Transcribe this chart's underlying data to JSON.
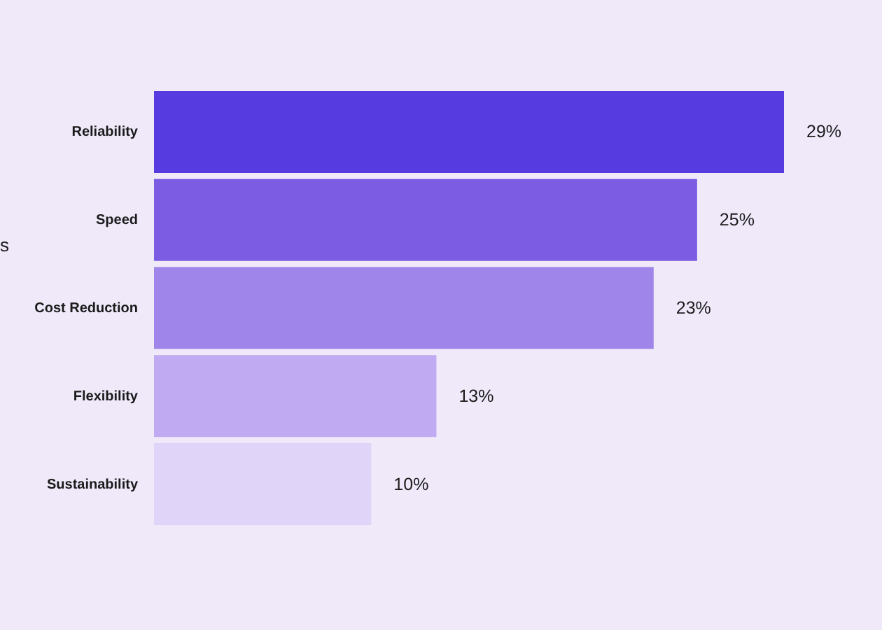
{
  "chart_data": {
    "type": "bar",
    "orientation": "horizontal",
    "ylabel": "s",
    "categories": [
      "Reliability",
      "Speed",
      "Cost Reduction",
      "Flexibility",
      "Sustainability"
    ],
    "values": [
      29,
      25,
      23,
      13,
      10
    ],
    "colors": [
      "#553be0",
      "#7b5ce3",
      "#9f84ea",
      "#c0aaf2",
      "#e0d5f8"
    ],
    "value_labels": [
      "29%",
      "25%",
      "23%",
      "13%",
      "10%"
    ]
  }
}
